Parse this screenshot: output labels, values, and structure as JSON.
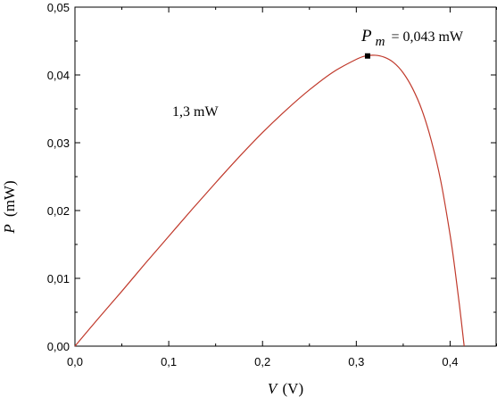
{
  "chart_data": {
    "type": "line",
    "x_axis": {
      "symbol": "V",
      "unit": "(V)",
      "range": [
        0,
        0.45
      ],
      "ticks": [
        0.0,
        0.1,
        0.2,
        0.3,
        0.4
      ],
      "tick_labels": [
        "0,0",
        "0,1",
        "0,2",
        "0,3",
        "0,4"
      ]
    },
    "y_axis": {
      "symbol": "P",
      "unit": "(mW)",
      "range": [
        0,
        0.05
      ],
      "ticks": [
        0.0,
        0.01,
        0.02,
        0.03,
        0.04,
        0.05
      ],
      "tick_labels": [
        "0,00",
        "0,01",
        "0,02",
        "0,03",
        "0,04",
        "0,05"
      ]
    },
    "grid": false,
    "series": [
      {
        "color": "#c0392b",
        "x": [
          0.0,
          0.025,
          0.05,
          0.075,
          0.1,
          0.125,
          0.15,
          0.175,
          0.2,
          0.225,
          0.25,
          0.275,
          0.3,
          0.31,
          0.32,
          0.33,
          0.34,
          0.35,
          0.36,
          0.37,
          0.38,
          0.39,
          0.4,
          0.405,
          0.41,
          0.415
        ],
        "y": [
          0.0,
          0.0041,
          0.0081,
          0.0122,
          0.0162,
          0.0202,
          0.0241,
          0.0279,
          0.0315,
          0.0348,
          0.0378,
          0.0404,
          0.0423,
          0.0428,
          0.0429,
          0.0426,
          0.0418,
          0.0403,
          0.038,
          0.0348,
          0.0303,
          0.0244,
          0.0164,
          0.0115,
          0.006,
          0.0
        ]
      }
    ],
    "max_point": {
      "x": 0.312,
      "y": 0.0428,
      "marker": "square",
      "color": "#000000"
    },
    "annotations": {
      "pm_symbol": "P",
      "pm_subscript": "m",
      "pm_value": "= 0,043 mW",
      "illumination": "1,3 mW"
    }
  }
}
